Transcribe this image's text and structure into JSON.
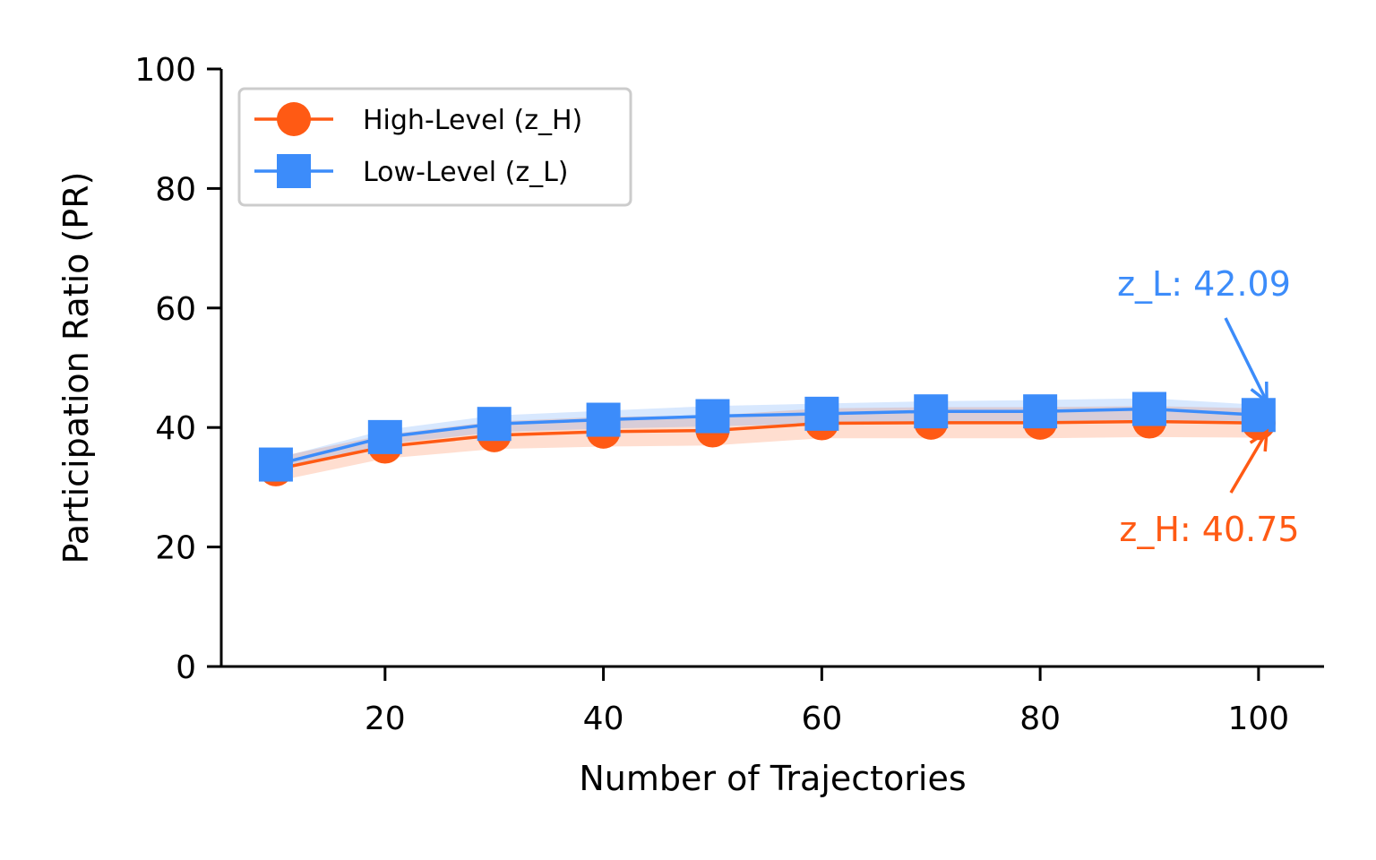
{
  "chart_data": {
    "type": "line",
    "xlabel": "Number of Trajectories",
    "ylabel": "Participation Ratio (PR)",
    "xlim": [
      5,
      106
    ],
    "ylim": [
      0,
      100
    ],
    "xticks": [
      20,
      40,
      60,
      80,
      100
    ],
    "yticks": [
      0,
      20,
      40,
      60,
      80,
      100
    ],
    "grid": false,
    "legend_position": "top-left",
    "x": [
      10,
      20,
      30,
      40,
      50,
      60,
      70,
      80,
      90,
      100
    ],
    "series": [
      {
        "name": "High-Level (z_H)",
        "marker": "circle",
        "color": "#FF5A14",
        "values": [
          33.0,
          36.8,
          38.7,
          39.3,
          39.5,
          40.7,
          40.8,
          40.8,
          41.0,
          40.75
        ],
        "lower": [
          31.0,
          34.8,
          36.4,
          36.8,
          37.0,
          38.2,
          38.2,
          38.2,
          38.4,
          38.3
        ],
        "upper": [
          35.0,
          38.8,
          41.0,
          41.8,
          42.0,
          43.2,
          43.4,
          43.4,
          43.6,
          43.2
        ]
      },
      {
        "name": "Low-Level (z_L)",
        "marker": "square",
        "color": "#3C8CFA",
        "values": [
          33.8,
          38.4,
          40.6,
          41.3,
          41.9,
          42.3,
          42.7,
          42.7,
          43.1,
          42.09
        ],
        "lower": [
          32.8,
          37.2,
          39.2,
          39.8,
          40.2,
          40.6,
          41.0,
          41.0,
          41.3,
          40.4
        ],
        "upper": [
          34.8,
          39.6,
          42.0,
          42.8,
          43.6,
          44.0,
          44.4,
          44.6,
          44.9,
          43.8
        ]
      }
    ],
    "annotations": [
      {
        "text": "z_L: 42.09",
        "series": 1,
        "x": 100,
        "y": 42.09,
        "color": "#3C8CFA"
      },
      {
        "text": "z_H: 40.75",
        "series": 0,
        "x": 100,
        "y": 40.75,
        "color": "#FF5A14"
      }
    ]
  }
}
